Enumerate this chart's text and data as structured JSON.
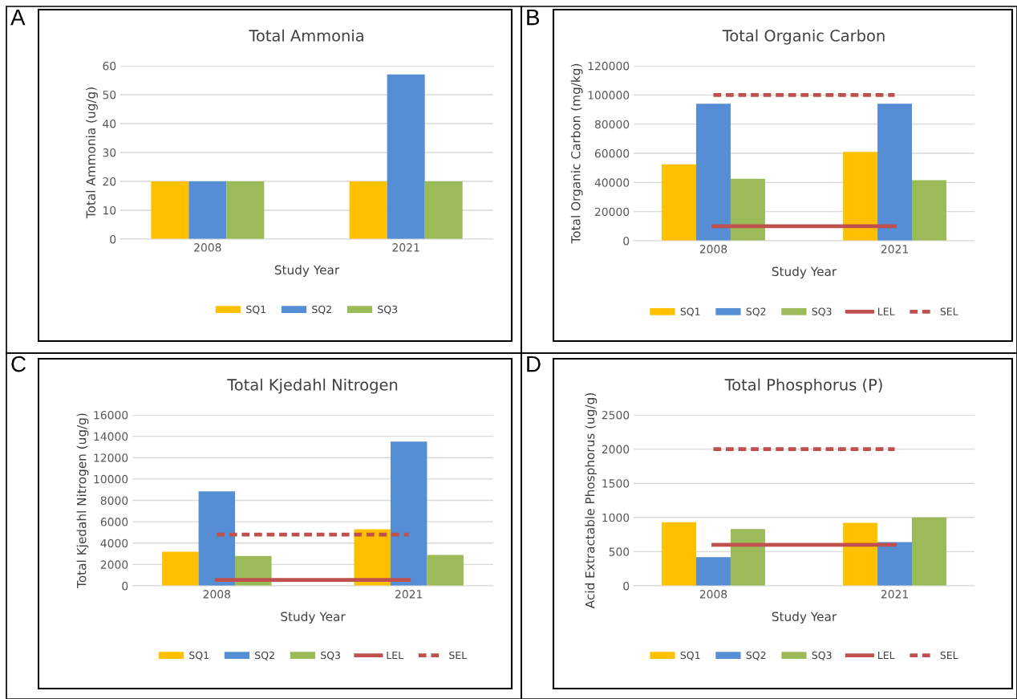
{
  "chart_data": [
    {
      "type": "bar",
      "title": "Total Ammonia",
      "xlabel": "Study Year",
      "ylabel": "Total Ammonia (ug/g)",
      "annotations": [
        "A"
      ],
      "categories": [
        "2008",
        "2021"
      ],
      "ylim": [
        0,
        60
      ],
      "yticks": [
        0,
        10,
        20,
        30,
        40,
        50,
        60
      ],
      "grid": "y",
      "legend": "bottom",
      "series": [
        {
          "name": "SQ1",
          "color": "#ffc000",
          "values": [
            20,
            20
          ]
        },
        {
          "name": "SQ2",
          "color": "#558ed5",
          "values": [
            20,
            57
          ]
        },
        {
          "name": "SQ3",
          "color": "#9bbb59",
          "values": [
            20,
            20
          ]
        }
      ]
    },
    {
      "type": "bar",
      "title": "Total Organic Carbon",
      "xlabel": "Study Year",
      "ylabel": "Total Organic Carbon (mg/kg)",
      "annotations": [
        "B"
      ],
      "categories": [
        "2008",
        "2021"
      ],
      "ylim": [
        0,
        120000
      ],
      "yticks": [
        0,
        20000,
        40000,
        60000,
        80000,
        100000,
        120000
      ],
      "grid": "y",
      "legend": "bottom",
      "series": [
        {
          "name": "SQ1",
          "color": "#ffc000",
          "values": [
            52500,
            61000
          ]
        },
        {
          "name": "SQ2",
          "color": "#558ed5",
          "values": [
            94000,
            94000
          ]
        },
        {
          "name": "SQ3",
          "color": "#9bbb59",
          "values": [
            42500,
            41500
          ]
        },
        {
          "name": "LEL",
          "type": "line",
          "line_style": "solid",
          "color": "#c0504d",
          "values": [
            10000,
            10000
          ]
        },
        {
          "name": "SEL",
          "type": "line",
          "line_style": "dashed",
          "color": "#c0504d",
          "values": [
            100000,
            100000
          ]
        }
      ]
    },
    {
      "type": "bar",
      "title": "Total Kjedahl Nitrogen",
      "xlabel": "Study Year",
      "ylabel": "Total Kjedahl Nitrogen (ug/g)",
      "annotations": [
        "C"
      ],
      "categories": [
        "2008",
        "2021"
      ],
      "ylim": [
        0,
        16000
      ],
      "yticks": [
        0,
        2000,
        4000,
        6000,
        8000,
        10000,
        12000,
        14000,
        16000
      ],
      "grid": "y",
      "legend": "bottom",
      "series": [
        {
          "name": "SQ1",
          "color": "#ffc000",
          "values": [
            3200,
            5300
          ]
        },
        {
          "name": "SQ2",
          "color": "#558ed5",
          "values": [
            8850,
            13500
          ]
        },
        {
          "name": "SQ3",
          "color": "#9bbb59",
          "values": [
            2800,
            2900
          ]
        },
        {
          "name": "LEL",
          "type": "line",
          "line_style": "solid",
          "color": "#c0504d",
          "values": [
            550,
            550
          ]
        },
        {
          "name": "SEL",
          "type": "line",
          "line_style": "dashed",
          "color": "#c0504d",
          "values": [
            4800,
            4800
          ]
        }
      ]
    },
    {
      "type": "bar",
      "title": "Total Phosphorus (P)",
      "xlabel": "Study Year",
      "ylabel": "Acid Extractable Phosphorus (ug/g)",
      "annotations": [
        "D"
      ],
      "categories": [
        "2008",
        "2021"
      ],
      "ylim": [
        0,
        2500
      ],
      "yticks": [
        0,
        500,
        1000,
        1500,
        2000,
        2500
      ],
      "grid": "y",
      "legend": "bottom",
      "series": [
        {
          "name": "SQ1",
          "color": "#ffc000",
          "values": [
            930,
            920
          ]
        },
        {
          "name": "SQ2",
          "color": "#558ed5",
          "values": [
            420,
            640
          ]
        },
        {
          "name": "SQ3",
          "color": "#9bbb59",
          "values": [
            830,
            1000
          ]
        },
        {
          "name": "LEL",
          "type": "line",
          "line_style": "solid",
          "color": "#c0504d",
          "values": [
            600,
            600
          ]
        },
        {
          "name": "SEL",
          "type": "line",
          "line_style": "dashed",
          "color": "#c0504d",
          "values": [
            2000,
            2000
          ]
        }
      ]
    }
  ]
}
